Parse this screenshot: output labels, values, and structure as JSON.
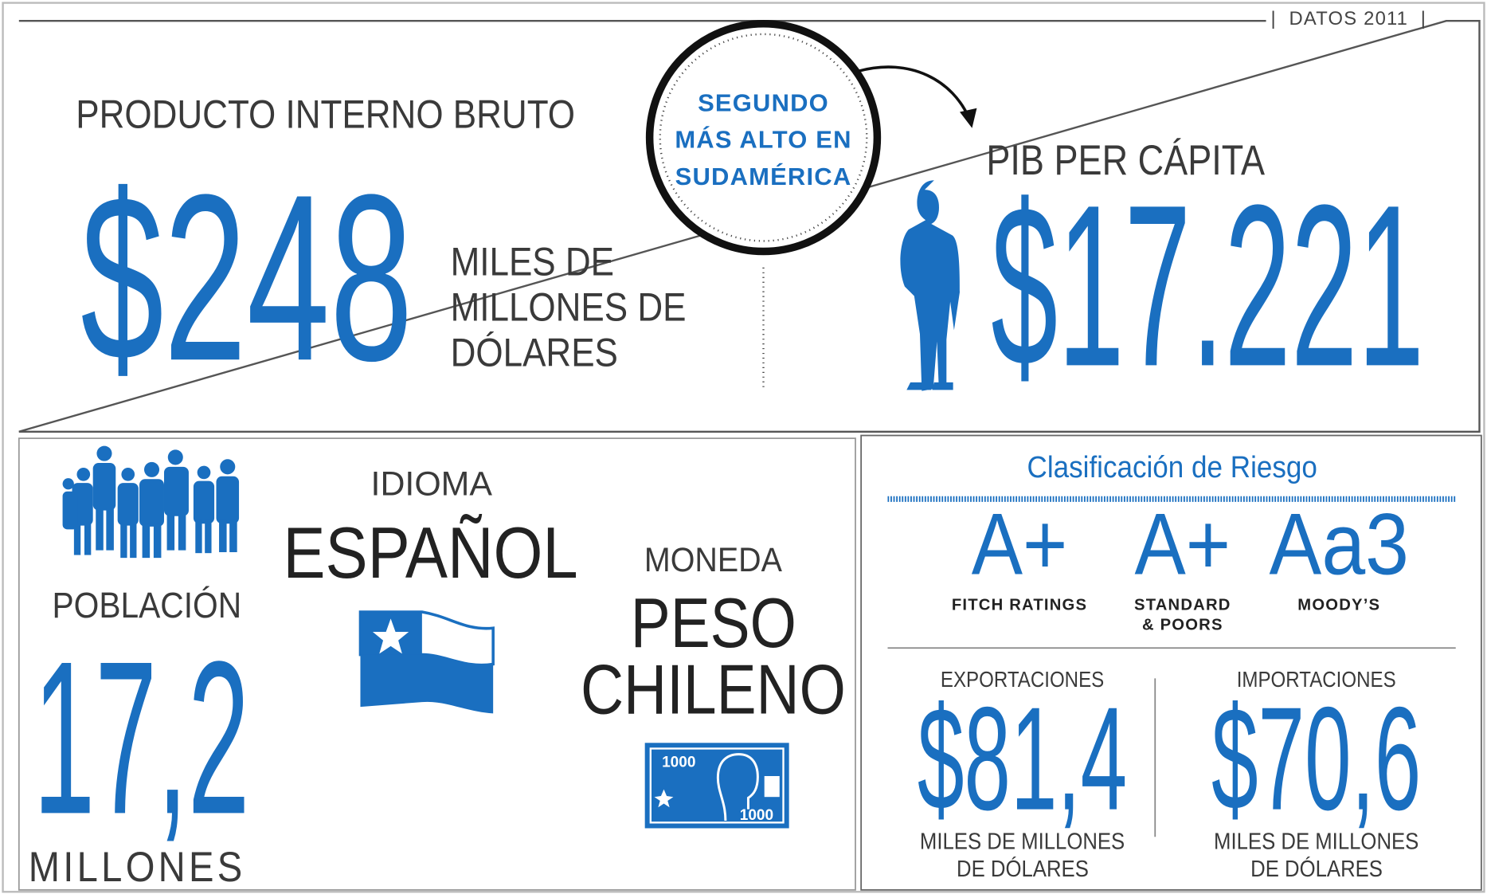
{
  "header": {
    "label": "DATOS 2011"
  },
  "gdp": {
    "title": "PRODUCTO INTERNO BRUTO",
    "value": "$248",
    "unit_lines": [
      "MILES DE",
      "MILLONES DE",
      "DÓLARES"
    ]
  },
  "badge": {
    "lines": [
      "SEGUNDO",
      "MÁS ALTO EN",
      "SUDAMÉRICA"
    ]
  },
  "per_capita": {
    "title": "PIB PER CÁPITA",
    "value": "$17.221"
  },
  "population": {
    "title": "POBLACIÓN",
    "value": "17,2",
    "unit": "MILLONES"
  },
  "language": {
    "title": "IDIOMA",
    "value": "ESPAÑOL"
  },
  "currency": {
    "title": "MONEDA",
    "value_lines": [
      "PESO",
      "CHILENO"
    ],
    "note_labels": [
      "1000",
      "1000"
    ]
  },
  "risk": {
    "title": "Clasificación de Riesgo",
    "ratings": [
      {
        "grade": "A+",
        "agency_lines": [
          "FITCH RATINGS"
        ]
      },
      {
        "grade": "A+",
        "agency_lines": [
          "STANDARD",
          "& POORS"
        ]
      },
      {
        "grade": "Aa3",
        "agency_lines": [
          "MOODY’S"
        ]
      }
    ]
  },
  "trade": [
    {
      "title": "EXPORTACIONES",
      "value": "$81,4",
      "unit_lines": [
        "MILES DE MILLONES",
        "DE DÓLARES"
      ]
    },
    {
      "title": "IMPORTACIONES",
      "value": "$70,6",
      "unit_lines": [
        "MILES DE MILLONES",
        "DE DÓLARES"
      ]
    }
  ]
}
